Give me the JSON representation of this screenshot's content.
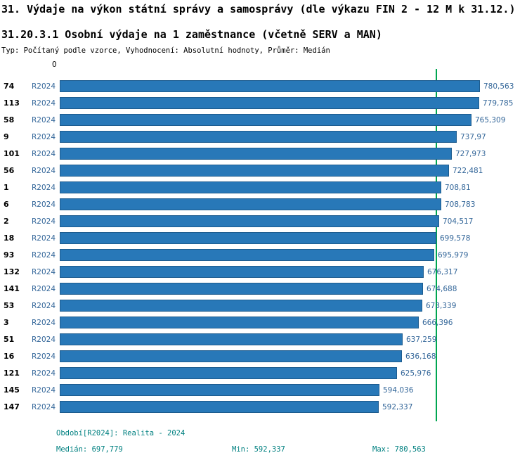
{
  "header": {
    "title": "31. Výdaje na výkon státní správy a samosprávy (dle výkazu FIN 2 - 12 M k 31.12.)",
    "subtitle": "31.20.3.1 Osobní výdaje na 1 zaměstnance (včetně SERV a MAN)",
    "meta": "Typ: Počítaný podle vzorce, Vyhodnocení: Absolutní hodnoty, Průměr: Medián"
  },
  "chart_data": {
    "type": "bar",
    "orientation": "horizontal",
    "axis_zero_label": "0",
    "series_label": "R2024",
    "categories": [
      "74",
      "113",
      "58",
      "9",
      "101",
      "56",
      "1",
      "6",
      "2",
      "18",
      "93",
      "132",
      "141",
      "53",
      "3",
      "51",
      "16",
      "121",
      "145",
      "147"
    ],
    "values": [
      780563,
      779785,
      765309,
      737970,
      727973,
      722481,
      708810,
      708783,
      704517,
      699578,
      695979,
      676317,
      674688,
      673339,
      666396,
      637259,
      636168,
      625976,
      594036,
      592337
    ],
    "value_labels": [
      "780,563",
      "779,785",
      "765,309",
      "737,97",
      "727,973",
      "722,481",
      "708,81",
      "708,783",
      "704,517",
      "699,578",
      "695,979",
      "676,317",
      "674,688",
      "673,339",
      "666,396",
      "637,259",
      "636,168",
      "625,976",
      "594,036",
      "592,337"
    ],
    "median": 697779,
    "min": 592337,
    "max": 780563,
    "xmax": 780563,
    "bar_color": "#2878b8",
    "bar_border_color": "#1d5c8f",
    "median_line_color": "#00a651",
    "label_color": "#336699",
    "footer_color": "#008080",
    "legend_position": "none",
    "grid": false
  },
  "footer": {
    "period": "Období[R2024]: Realita - 2024",
    "median": "Medián: 697,779",
    "min": "Min: 592,337",
    "max": "Max: 780,563"
  }
}
